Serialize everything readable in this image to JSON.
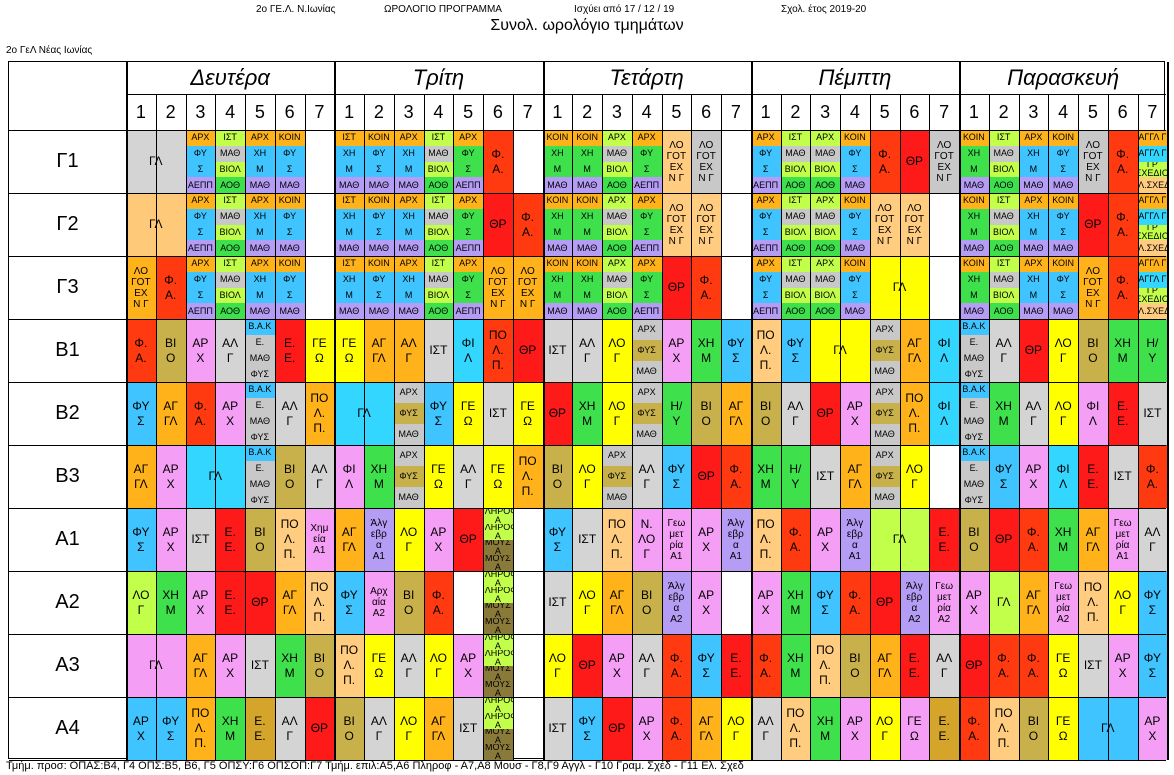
{
  "header": {
    "school_short": "2ο ΓΕ.Λ. Ν.Ιωνίας",
    "program": "ΩΡΟΛΟΓΙΟ ΠΡΟΓΡΑΜΜΑ",
    "valid_from": "Ισχύει από 17 / 12 / 19",
    "school_year": "Σχολ. έτος 2019-20",
    "title": "Συνολ. ωρολόγιο τμημάτων",
    "school_name": "2ο ΓεΛ Νέας Ιωνίας"
  },
  "days": [
    "Δευτέρα",
    "Τρίτη",
    "Τετάρτη",
    "Πέμπτη",
    "Παρασκευή"
  ],
  "periods": [
    "1",
    "2",
    "3",
    "4",
    "5",
    "6",
    "7"
  ],
  "classes": [
    "Γ1",
    "Γ2",
    "Γ3",
    "Β1",
    "Β2",
    "Β3",
    "Α1",
    "Α2",
    "Α3",
    "Α4"
  ],
  "colors": {
    "grey": "#d4d4d4",
    "orange_l": "#ffc97a",
    "green": "#3ee04c",
    "red": "#ff3a10",
    "crimson": "#ff1a1a",
    "blue": "#3fc4ff",
    "lime": "#c2ff4a",
    "pink": "#f59ef5",
    "gray2": "#c8c8c8",
    "yellow": "#ffff00",
    "amber": "#ffb21a",
    "olive": "#c8b14a",
    "teal": "#1fd6c0",
    "peach": "#ffcc80",
    "lavender": "#b59cf5",
    "cyan": "#33d6ff",
    "brown": "#8a7a3a",
    "mint": "#9cff8a",
    "goldenrod": "#d4a52a"
  },
  "cells": {
    "ΓΛ": "ΓΛ",
    "ΑΡΧ": "ΑΡ\nΧ",
    "ΑΛΓ": "ΑΛ\nΓ",
    "ΦΥΣ": "ΦΥ\nΣ",
    "ΦΑ": "Φ.\nΑ.",
    "ΘΡ": "ΘΡ",
    "ΙΣΤ": "ΙΣΤ",
    "ΧΗΜ": "ΧΗ\nΜ",
    "ΒΙΟ": "ΒΙ\nΟ",
    "ΕΕ": "Ε.\nΕ.",
    "ΑΓΓΛ": "ΑΓ\nΓΛ",
    "ΠΟΛΠ": "ΠΟ\nΛ.\nΠ.",
    "ΛΟΓ": "ΛΟ\nΓ",
    "ΦΙΛ": "ΦΙ\nΛ",
    "ΓΕΩ": "ΓΕ\nΩ",
    "ΗΥ": "Η/\nΥ",
    "ΝΛΟΓ": "Ν.\nΛΟ\nΓ",
    "ΛΟΓΟΤ": "ΛΟ\nΓΟΤ\nΕΧ\nΝ Γ",
    "ΧΗΜΕΙΑ": "Χημ\nεία\nΑ1",
    "ΑΡΧΑΙΑ": "Αρχ\nαία\nΑ2",
    "ΑΛΓΕΒΡΑ1": "Άλγ\nεβρ\nα\nΑ1",
    "ΑΛΓΕΒΡΑ2": "Άλγ\nεβρ\nα\nΑ2",
    "ΓΕΩΜ1": "Γεω\nμετ\nρία\nΑ1",
    "ΓΕΩΜ2": "Γεω\nμετ\nρία\nΑ2",
    "ΓΕΩΜ": "Γεω\nμετ\nρία\nΑ2"
  },
  "stacks": {
    "oπ": [
      "ΑΡΧ",
      "ΦΥ",
      "Σ",
      "ΑΕΠΠ"
    ],
    "oπ2": [
      "ΙΣΤ",
      "ΜΑΘ",
      "ΒΙΟΛ",
      "ΑΟΘ"
    ],
    "oπ3": [
      "ΚΟΙΝ",
      "ΦΥ",
      "Σ",
      "ΜΑΘ"
    ],
    "oπ4": [
      "ΑΡΧ",
      "ΧΗ",
      "Μ",
      "ΜΑΘ"
    ],
    "oπ5": [
      "ΙΣΤ",
      "ΧΗ",
      "Μ",
      "ΜΑΘ"
    ],
    "oπ6": [
      "ΚΟΙΝ",
      "ΧΗ",
      "Μ",
      "ΜΑΘ"
    ],
    "oπ7": [
      "ΑΡΧ",
      "ΜΑΘ",
      "ΒΙΟΛ",
      "ΑΟΘ"
    ],
    "oπ8": [
      "ΙΣΤ",
      "ΦΥ",
      "Σ",
      "ΑΕΠΠ"
    ],
    "bake": [
      "Β.Α.Κ",
      "Ε.",
      "ΜΑΘ",
      "ΦΥΣ"
    ],
    "arxfys": [
      "ΑΡΧ",
      "ΦΥΣ",
      "ΜΑΘ"
    ],
    "pl": [
      "ΠΛΗΡΟΦ Α",
      "ΠΛΗΡΟΦ Α",
      "ΜΟΥΣ Α",
      "ΜΟΥΣ Α"
    ],
    "angl": [
      "ΑΓΓΛ Γ",
      "ΑΓΓΛ Γ",
      "ΓΡ ΣΧΕΔΙΟ",
      "ΕΛ.ΣΧΕΔ."
    ]
  },
  "footer": "Τμήμ. προσ: ΟΠΑΣ:Β4, Γ4   ΟΠΣ:Β5, Β6, Γ5   ΟΠΣΥ:Γ6   ΟΠΣΟΠ:Γ7   Τμήμ. επιλ:Α5,Α6 Πληροφ - Α7,Α8 Μουσ - Γ8,Γ9 Αγγλ - Γ10 Γραμ. Σχέδ - Γ11 Ελ. Σχεδ"
}
